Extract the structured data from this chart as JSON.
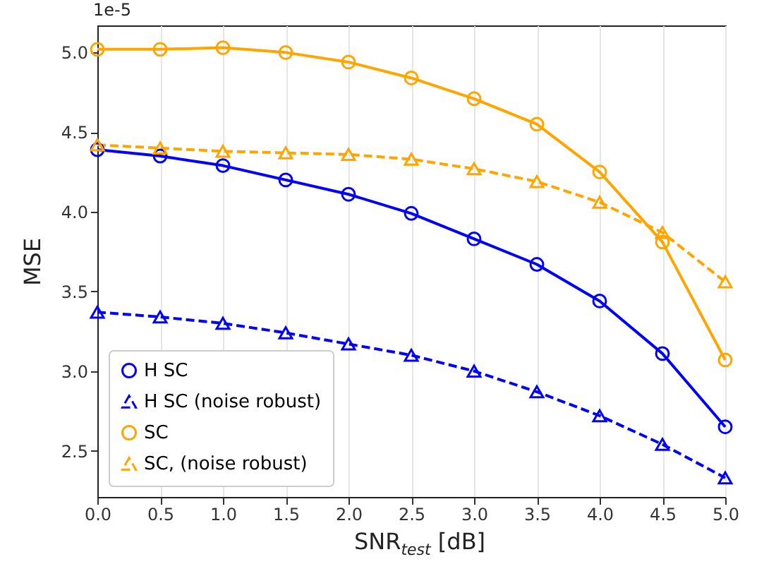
{
  "chart_data": {
    "type": "line",
    "xlabel": "SNR$_{test}$ [dB]",
    "ylabel": "MSE",
    "annotations": [
      "1e-5"
    ],
    "x": [
      0,
      0.5,
      1,
      1.5,
      2,
      2.5,
      3,
      3.5,
      4,
      4.5,
      5
    ],
    "series": [
      {
        "name": "H SC",
        "color": "#0000ff",
        "marker": "circle",
        "line_style": "solid",
        "values": [
          4.39,
          4.35,
          4.29,
          4.2,
          4.11,
          3.99,
          3.83,
          3.67,
          3.44,
          3.11,
          2.65
        ]
      },
      {
        "name": "H SC (noise robust)",
        "color": "#0000ff",
        "marker": "triangle",
        "line_style": "dashed",
        "values": [
          3.37,
          3.34,
          3.3,
          3.24,
          3.17,
          3.1,
          3.0,
          2.87,
          2.72,
          2.54,
          2.33
        ]
      },
      {
        "name": "SC",
        "color": "#ffa500",
        "marker": "circle",
        "line_style": "solid",
        "values": [
          5.02,
          5.02,
          5.03,
          5.0,
          4.94,
          4.84,
          4.71,
          4.55,
          4.25,
          3.81,
          3.07
        ]
      },
      {
        "name": "SC, (noise robust)",
        "color": "#ffa500",
        "marker": "triangle",
        "line_style": "dashed",
        "values": [
          4.42,
          4.4,
          4.38,
          4.37,
          4.36,
          4.33,
          4.27,
          4.19,
          4.06,
          3.87,
          3.56
        ]
      }
    ],
    "xlim": [
      0,
      5
    ],
    "xticks": [
      {
        "value": 0,
        "label": "0.0"
      },
      0.5,
      {
        "value": 1,
        "label": "1.0"
      },
      1.5,
      {
        "value": 2,
        "label": "2.0"
      },
      2.5,
      {
        "value": 3,
        "label": "3.0"
      },
      3.5,
      {
        "value": 4,
        "label": "4.0"
      },
      4.5,
      {
        "value": 5,
        "label": "5.0"
      }
    ],
    "ylim": [
      2.21,
      5.17
    ],
    "yticks": [
      2.5,
      {
        "value": 3,
        "label": "3.0"
      },
      3.5,
      {
        "value": 4,
        "label": "4.0"
      },
      4.5,
      {
        "value": 5,
        "label": "5.0"
      }
    ],
    "grid": "x",
    "legend": "bottom left"
  }
}
